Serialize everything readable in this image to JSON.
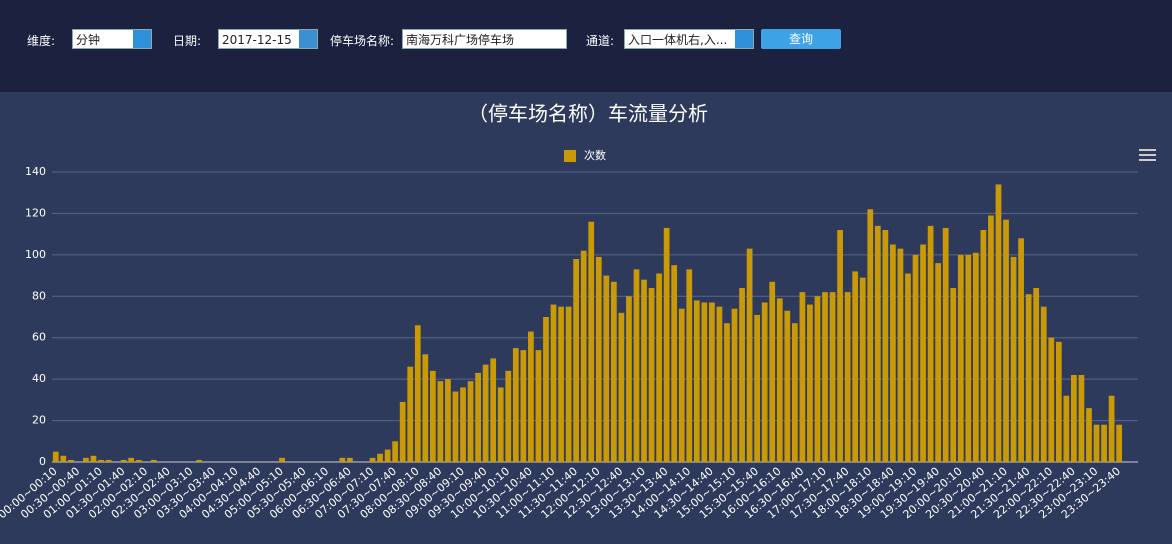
{
  "filters": {
    "dimension_label": "维度:",
    "dimension_value": "分钟",
    "date_label": "日期:",
    "date_value": "2017-12-15",
    "lot_label": "停车场名称:",
    "lot_value": "南海万科广场停车场",
    "channel_label": "通道:",
    "channel_value": "入口一体机右,入...",
    "query_button": "查询"
  },
  "chart_data": {
    "type": "bar",
    "title": "（停车场名称）车流量分析",
    "categories": [
      "00:00~00:10",
      null,
      null,
      "00:30~00:40",
      null,
      null,
      "01:00~01:10",
      null,
      null,
      "01:30~01:40",
      null,
      null,
      "02:00~02:10",
      null,
      null,
      "02:30~02:40",
      null,
      null,
      "03:00~03:10",
      null,
      null,
      "03:30~03:40",
      null,
      null,
      "04:00~04:10",
      null,
      null,
      "04:30~04:40",
      null,
      null,
      "05:00~05:10",
      null,
      null,
      "05:30~05:40",
      null,
      null,
      "06:00~06:10",
      null,
      null,
      "06:30~06:40",
      null,
      null,
      "07:00~07:10",
      null,
      null,
      "07:30~07:40",
      null,
      null,
      "08:00~08:10",
      null,
      null,
      "08:30~08:40",
      null,
      null,
      "09:00~09:10",
      null,
      null,
      "09:30~09:40",
      null,
      null,
      "10:00~10:10",
      null,
      null,
      "10:30~10:40",
      null,
      null,
      "11:00~11:10",
      null,
      null,
      "11:30~11:40",
      null,
      null,
      "12:00~12:10",
      null,
      null,
      "12:30~12:40",
      null,
      null,
      "13:00~13:10",
      null,
      null,
      "13:30~13:40",
      null,
      null,
      "14:00~14:10",
      null,
      null,
      "14:30~14:40",
      null,
      null,
      "15:00~15:10",
      null,
      null,
      "15:30~15:40",
      null,
      null,
      "16:00~16:10",
      null,
      null,
      "16:30~16:40",
      null,
      null,
      "17:00~17:10",
      null,
      null,
      "17:30~17:40",
      null,
      null,
      "18:00~18:10",
      null,
      null,
      "18:30~18:40",
      null,
      null,
      "19:00~19:10",
      null,
      null,
      "19:30~19:40",
      null,
      null,
      "20:00~20:10",
      null,
      null,
      "20:30~20:40",
      null,
      null,
      "21:00~21:10",
      null,
      null,
      "21:30~21:40",
      null,
      null,
      "22:00~22:10",
      null,
      null,
      "22:30~22:40",
      null,
      null,
      "23:00~23:10",
      null,
      null,
      "23:30~23:40",
      null,
      null
    ],
    "series": [
      {
        "name": "次数",
        "color": "#c99a06",
        "values": [
          5,
          3,
          1,
          0,
          2,
          3,
          1,
          1,
          0,
          1,
          2,
          1,
          0,
          1,
          0,
          0,
          0,
          0,
          0,
          1,
          0,
          0,
          0,
          0,
          0,
          0,
          0,
          0,
          0,
          0,
          2,
          0,
          0,
          0,
          0,
          0,
          0,
          0,
          2,
          2,
          0,
          0,
          2,
          4,
          6,
          10,
          29,
          46,
          66,
          52,
          44,
          39,
          40,
          34,
          36,
          39,
          43,
          47,
          50,
          36,
          44,
          55,
          54,
          63,
          54,
          70,
          76,
          75,
          75,
          98,
          102,
          116,
          99,
          90,
          87,
          72,
          80,
          93,
          88,
          84,
          91,
          113,
          95,
          74,
          93,
          78,
          77,
          77,
          75,
          67,
          74,
          84,
          103,
          71,
          77,
          87,
          79,
          73,
          67,
          82,
          76,
          80,
          82,
          82,
          112,
          82,
          92,
          89,
          122,
          114,
          112,
          105,
          103,
          91,
          100,
          105,
          114,
          96,
          113,
          84,
          100,
          100,
          101,
          112,
          119,
          134,
          117,
          99,
          108,
          81,
          84,
          75,
          60,
          58,
          32,
          42,
          42,
          26,
          18,
          18,
          32,
          18,
          0,
          0
        ]
      }
    ],
    "ylim": [
      0,
      140
    ],
    "yticks": [
      0,
      20,
      40,
      60,
      80,
      100,
      120,
      140
    ],
    "grid": true,
    "legend": "top"
  }
}
